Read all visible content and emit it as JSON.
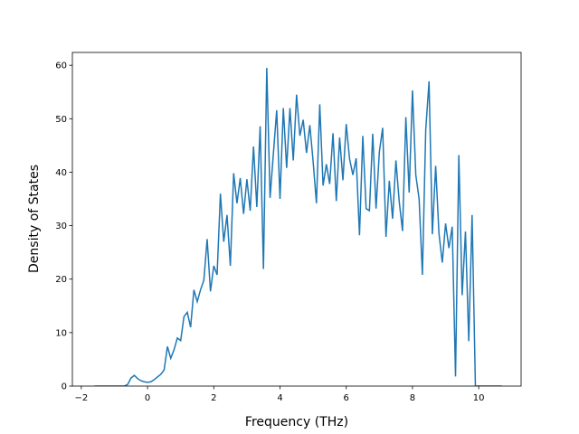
{
  "chart_data": {
    "type": "line",
    "xlabel": "Frequency (THz)",
    "ylabel": "Density of States",
    "x": [
      -1.6,
      -1.5,
      -1.4,
      -1.3,
      -1.2,
      -1.1,
      -1.0,
      -0.9,
      -0.8,
      -0.7,
      -0.6,
      -0.5,
      -0.4,
      -0.3,
      -0.2,
      -0.1,
      0.0,
      0.1,
      0.2,
      0.3,
      0.4,
      0.5,
      0.6,
      0.7,
      0.8,
      0.9,
      1.0,
      1.1,
      1.2,
      1.3,
      1.4,
      1.5,
      1.6,
      1.7,
      1.8,
      1.9,
      2.0,
      2.1,
      2.2,
      2.3,
      2.4,
      2.5,
      2.6,
      2.7,
      2.8,
      2.9,
      3.0,
      3.1,
      3.2,
      3.3,
      3.4,
      3.5,
      3.6,
      3.7,
      3.8,
      3.9,
      4.0,
      4.1,
      4.2,
      4.3,
      4.4,
      4.5,
      4.6,
      4.7,
      4.8,
      4.9,
      5.0,
      5.1,
      5.2,
      5.3,
      5.4,
      5.5,
      5.6,
      5.7,
      5.8,
      5.9,
      6.0,
      6.1,
      6.2,
      6.3,
      6.4,
      6.5,
      6.6,
      6.7,
      6.8,
      6.9,
      7.0,
      7.1,
      7.2,
      7.3,
      7.4,
      7.5,
      7.6,
      7.7,
      7.8,
      7.9,
      8.0,
      8.1,
      8.2,
      8.3,
      8.4,
      8.5,
      8.6,
      8.7,
      8.8,
      8.9,
      9.0,
      9.1,
      9.2,
      9.3,
      9.4,
      9.5,
      9.6,
      9.7,
      9.8,
      9.9,
      10.0,
      10.1,
      10.2,
      10.3,
      10.4,
      10.5,
      10.6,
      10.7
    ],
    "series": [
      {
        "color": "#1f77b4",
        "values": [
          0,
          0,
          0,
          0,
          0,
          0,
          0,
          0,
          0,
          0,
          0.3,
          1.5,
          2,
          1.4,
          1,
          0.8,
          0.7,
          0.8,
          1.2,
          1.7,
          2.2,
          3,
          7.4,
          5.2,
          6.8,
          9,
          8.5,
          13,
          13.8,
          11,
          18,
          15.8,
          18,
          19.8,
          27.5,
          17.7,
          22.5,
          20.8,
          36,
          27,
          32,
          22.5,
          39.8,
          34.2,
          38.9,
          32.2,
          38.7,
          32.8,
          44.8,
          33.5,
          48.6,
          21.9,
          59.5,
          35.2,
          43.5,
          51.6,
          35,
          52,
          40.8,
          52,
          42.2,
          54.5,
          46.8,
          49.8,
          43.6,
          48.8,
          42,
          34.2,
          52.7,
          37.5,
          41.5,
          37.8,
          47.3,
          34.6,
          46.5,
          38.5,
          49,
          42.5,
          39.5,
          42.6,
          28.2,
          46.8,
          33.2,
          32.8,
          47.2,
          33.2,
          43.8,
          48.3,
          27.9,
          38.4,
          31.3,
          42.2,
          34.5,
          29,
          50.3,
          36.2,
          55.3,
          39.5,
          35,
          20.8,
          47.9,
          57,
          28.4,
          41.2,
          28.5,
          23.1,
          30.4,
          25.8,
          29.8,
          1.8,
          43.2,
          17,
          28.9,
          8.4,
          32,
          0,
          0,
          0,
          0,
          0,
          0,
          0,
          0,
          0
        ]
      }
    ],
    "xlim": [
      -2.27,
      11.28
    ],
    "ylim": [
      0,
      62.4
    ],
    "xticks": [
      {
        "value": -2,
        "label": "−2"
      },
      0,
      2,
      4,
      6,
      8,
      10
    ],
    "yticks": [
      0,
      10,
      20,
      30,
      40,
      50,
      60
    ]
  }
}
